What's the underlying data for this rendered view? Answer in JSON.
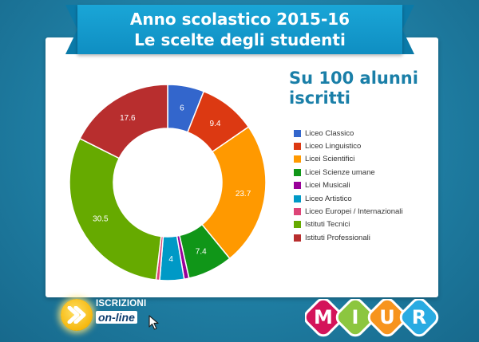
{
  "header": {
    "title_line1": "Anno scolastico 2015-16",
    "title_line2": "Le scelte degli studenti"
  },
  "heading": {
    "line1": "Su 100 alunni",
    "line2": "iscritti"
  },
  "chart_data": {
    "type": "pie",
    "variant": "donut",
    "categories": [
      "Liceo Classico",
      "Liceo Linguistico",
      "Licei Scientifici",
      "Licei Scienze umane",
      "Licei Musicali",
      "Liceo Artistico",
      "Liceo Europei / Internazionali",
      "Istituti Tecnici",
      "Istituti Professionali"
    ],
    "values": [
      6,
      9.4,
      23.7,
      7.4,
      0.8,
      4,
      0.6,
      30.5,
      17.6
    ],
    "labels": [
      "6",
      "9.4",
      "23.7",
      "7.4",
      "",
      "4",
      "",
      "30.5",
      "17.6"
    ],
    "colors": [
      "#3366cc",
      "#dc3912",
      "#ff9900",
      "#109618",
      "#990099",
      "#0099c6",
      "#dd4477",
      "#66aa00",
      "#b82e2e"
    ],
    "legend_position": "right"
  },
  "badge": {
    "line1": "ISCRIZIONI",
    "line2": "on-line"
  },
  "logo": {
    "letters": [
      "M",
      "I",
      "U",
      "R"
    ],
    "colors": [
      "#d4145a",
      "#8cc63f",
      "#f7941d",
      "#29abe2"
    ]
  }
}
